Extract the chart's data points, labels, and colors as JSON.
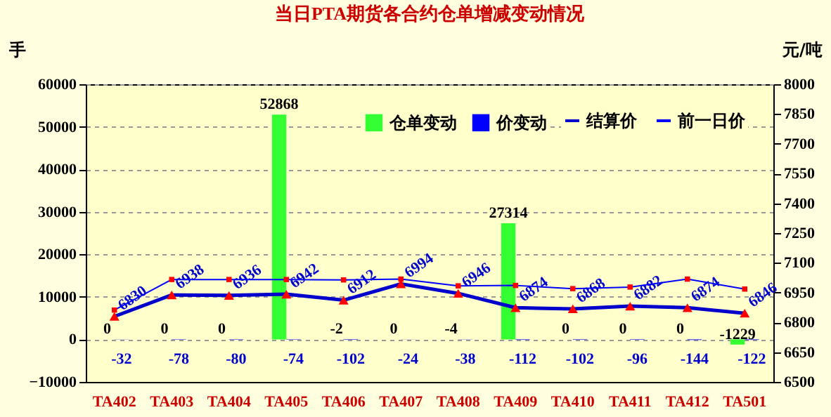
{
  "chart_data": {
    "type": "bar",
    "title": "当日PTA期货各合约仓单增减变动情况",
    "ylabel": "手",
    "y2label": "元/吨",
    "categories": [
      "TA402",
      "TA403",
      "TA404",
      "TA405",
      "TA406",
      "TA407",
      "TA408",
      "TA409",
      "TA410",
      "TA411",
      "TA412",
      "TA501"
    ],
    "series": [
      {
        "name": "仓单变动",
        "color": "#33ff33",
        "values": [
          0,
          0,
          0,
          52868,
          -2,
          0,
          -4,
          27314,
          0,
          0,
          0,
          -1229
        ],
        "value_labels": [
          "0",
          "0",
          "0",
          "52868",
          "-2",
          "0",
          "-4",
          "27314",
          "0",
          "0",
          "0",
          "-1229"
        ]
      },
      {
        "name": "价变动",
        "color": "#0000ff",
        "values": [
          -32,
          -78,
          -80,
          -74,
          -102,
          -24,
          -38,
          -112,
          -102,
          -96,
          -144,
          -122
        ],
        "value_labels": [
          "-32",
          "-78",
          "-80",
          "-74",
          "-102",
          "-24",
          "-38",
          "-112",
          "-102",
          "-96",
          "-144",
          "-122"
        ]
      },
      {
        "name": "结算价",
        "type": "line",
        "axis": "y2",
        "color": "#0000cc",
        "marker": "triangle",
        "values": [
          6830,
          6938,
          6936,
          6942,
          6912,
          6994,
          6946,
          6874,
          6868,
          6882,
          6874,
          6846
        ],
        "value_labels": [
          "6830",
          "6938",
          "6936",
          "6942",
          "6912",
          "6994",
          "6946",
          "6874",
          "6868",
          "6882",
          "6874",
          "6846"
        ]
      },
      {
        "name": "前一日价",
        "type": "line",
        "axis": "y2",
        "color": "#0000ff",
        "marker": "square",
        "values": [
          6862,
          7016,
          7016,
          7016,
          7014,
          7018,
          6984,
          6986,
          6970,
          6978,
          7018,
          6968
        ]
      }
    ],
    "ylim": [
      -10000,
      60000
    ],
    "yticks": [
      -10000,
      0,
      10000,
      20000,
      30000,
      40000,
      50000,
      60000
    ],
    "y2lim": [
      6500,
      8000
    ],
    "y2ticks": [
      6500,
      6650,
      6800,
      6950,
      7100,
      7250,
      7400,
      7550,
      7700,
      7850,
      8000
    ],
    "grid": "y",
    "legend": "top right"
  }
}
